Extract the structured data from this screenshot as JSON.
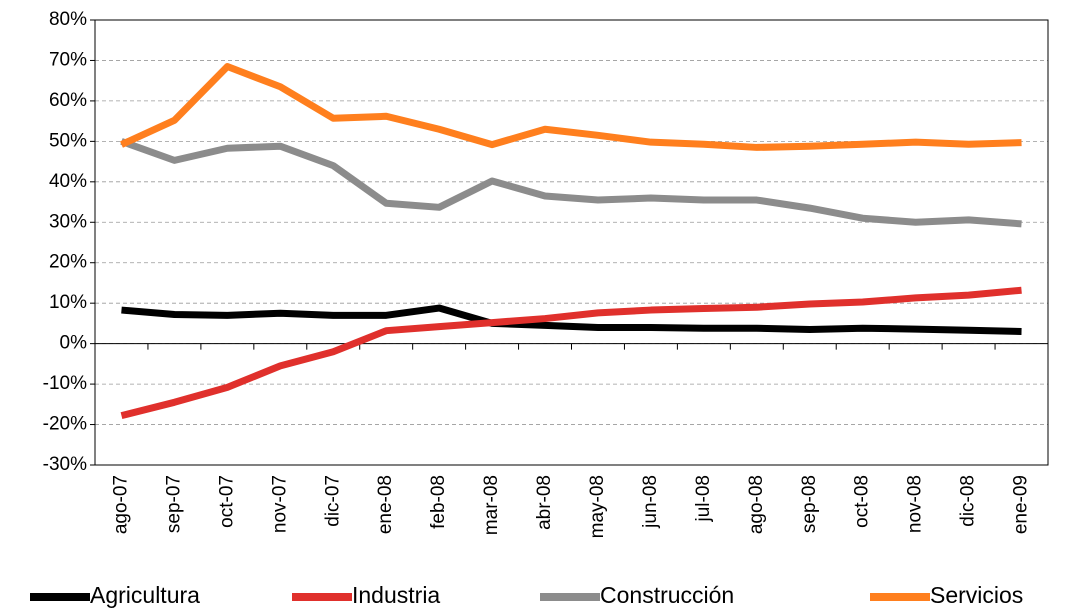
{
  "chart_data": {
    "type": "line",
    "categories": [
      "ago-07",
      "sep-07",
      "oct-07",
      "nov-07",
      "dic-07",
      "ene-08",
      "feb-08",
      "mar-08",
      "abr-08",
      "may-08",
      "jun-08",
      "jul-08",
      "ago-08",
      "sep-08",
      "oct-08",
      "nov-08",
      "dic-08",
      "ene-09"
    ],
    "series": [
      {
        "name": "Agricultura",
        "color": "#000000",
        "values": [
          8.3,
          7.2,
          7.0,
          7.5,
          7.0,
          7.0,
          8.8,
          5.0,
          4.5,
          4.0,
          4.0,
          3.8,
          3.8,
          3.5,
          3.8,
          3.6,
          3.3,
          3.0
        ]
      },
      {
        "name": "Industria",
        "color": "#e0302c",
        "values": [
          -17.8,
          -14.5,
          -10.8,
          -5.5,
          -2.0,
          3.2,
          4.2,
          5.2,
          6.2,
          7.6,
          8.3,
          8.7,
          9.0,
          9.8,
          10.3,
          11.3,
          12.0,
          13.2
        ]
      },
      {
        "name": "Construcción",
        "color": "#8c8c8c",
        "values": [
          50.0,
          45.3,
          48.3,
          48.8,
          44.0,
          34.7,
          33.7,
          40.2,
          36.5,
          35.5,
          36.0,
          35.5,
          35.5,
          33.5,
          31.0,
          30.0,
          30.6,
          29.6
        ]
      },
      {
        "name": "Servicios",
        "color": "#ff7f1e",
        "values": [
          49.2,
          55.2,
          68.5,
          63.5,
          55.7,
          56.2,
          53.0,
          49.2,
          53.0,
          51.5,
          49.8,
          49.3,
          48.5,
          48.8,
          49.3,
          49.8,
          49.3,
          49.7
        ]
      }
    ],
    "ylim": [
      -30,
      80
    ],
    "yticks": [
      {
        "value": -30,
        "label": "-30%"
      },
      {
        "value": -20,
        "label": "-20%"
      },
      {
        "value": -10,
        "label": "-10%"
      },
      {
        "value": 0,
        "label": "0%"
      },
      {
        "value": 10,
        "label": "10%"
      },
      {
        "value": 20,
        "label": "20%"
      },
      {
        "value": 30,
        "label": "30%"
      },
      {
        "value": 40,
        "label": "40%"
      },
      {
        "value": 50,
        "label": "50%"
      },
      {
        "value": 60,
        "label": "60%"
      },
      {
        "value": 70,
        "label": "70%"
      },
      {
        "value": 80,
        "label": "80%"
      }
    ],
    "grid": true,
    "legend": "bottom"
  }
}
